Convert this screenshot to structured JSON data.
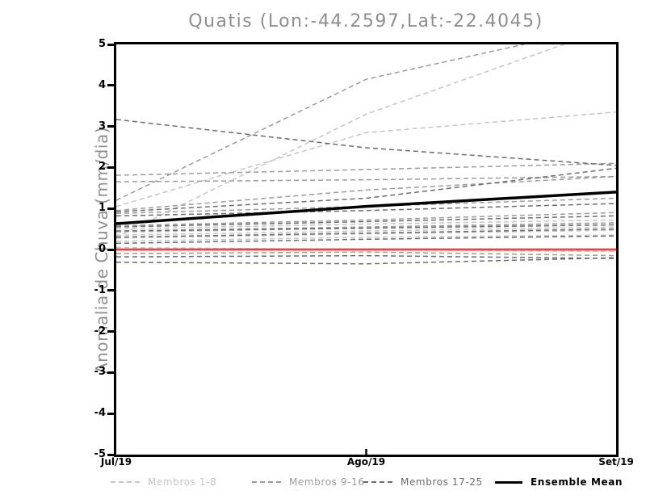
{
  "title": "Quatis (Lon:-44.2597,Lat:-22.4045)",
  "y_axis": {
    "label": "Anomalia de Chuva (mm/dia)",
    "ticks": [
      5,
      4,
      3,
      2,
      1,
      0,
      -1,
      -2,
      -3,
      -4,
      -5
    ]
  },
  "x_axis": {
    "ticks": [
      "Jul/19",
      "Ago/19",
      "Set/19"
    ]
  },
  "legend": [
    {
      "label": "Membros 1-8",
      "color": "#c5c5c5",
      "style": "dashed"
    },
    {
      "label": "Membros 9-16",
      "color": "#9b9b9b",
      "style": "dashed"
    },
    {
      "label": "Membros 17-25",
      "color": "#6c6c6c",
      "style": "dashed"
    },
    {
      "label": "Ensemble Mean",
      "color": "#000000",
      "style": "solid"
    }
  ],
  "colors": {
    "background": "#ffffff",
    "axis": "#000000",
    "title_text": "#8f8f8f",
    "reference_line": "#fa3c3c"
  },
  "chart_data": {
    "type": "line",
    "title": "Quatis (Lon:-44.2597,Lat:-22.4045)",
    "xlabel": "",
    "ylabel": "Anomalia de Chuva (mm/dia)",
    "x": [
      "Jul/19",
      "Ago/19",
      "Set/19"
    ],
    "ylim": [
      -5,
      5
    ],
    "grid": false,
    "legend_position": "bottom",
    "groups": [
      {
        "name": "Membros 1-8",
        "color": "#c5c5c5",
        "line_style": "dashed",
        "members": [
          [
            0.5,
            0.62,
            0.72
          ],
          [
            0.42,
            0.52,
            0.65
          ],
          [
            0.35,
            0.45,
            0.55
          ],
          [
            0.28,
            0.38,
            0.47
          ],
          [
            0.2,
            0.3,
            0.35
          ],
          [
            0.05,
            0.0,
            -0.05
          ],
          [
            0.3,
            3.3,
            5.45
          ],
          [
            1.05,
            2.85,
            3.35
          ]
        ]
      },
      {
        "name": "Membros 9-16",
        "color": "#9b9b9b",
        "line_style": "dashed",
        "members": [
          [
            1.2,
            4.15,
            5.5
          ],
          [
            1.65,
            1.7,
            1.78
          ],
          [
            1.81,
            1.95,
            2.1
          ],
          [
            0.95,
            1.45,
            1.78
          ],
          [
            0.88,
            1.05,
            1.25
          ],
          [
            0.58,
            0.72,
            0.9
          ],
          [
            0.45,
            0.55,
            0.65
          ],
          [
            -0.1,
            -0.06,
            -0.15
          ]
        ]
      },
      {
        "name": "Membros 17-25",
        "color": "#6c6c6c",
        "line_style": "dashed",
        "members": [
          [
            3.17,
            2.48,
            2.05
          ],
          [
            0.92,
            1.25,
            1.98
          ],
          [
            0.82,
            0.95,
            1.12
          ],
          [
            0.55,
            0.68,
            0.82
          ],
          [
            0.45,
            0.52,
            0.6
          ],
          [
            0.3,
            0.4,
            0.5
          ],
          [
            0.15,
            0.25,
            0.33
          ],
          [
            -0.18,
            -0.15,
            -0.22
          ],
          [
            -0.31,
            -0.35,
            -0.2
          ]
        ]
      }
    ],
    "ensemble_mean": {
      "name": "Ensemble Mean",
      "color": "#000000",
      "values": [
        0.63,
        1.05,
        1.4
      ]
    },
    "reference_line": {
      "name": "zero-line",
      "color": "#fa3c3c",
      "values": [
        0.0,
        0.0,
        0.0
      ]
    }
  }
}
